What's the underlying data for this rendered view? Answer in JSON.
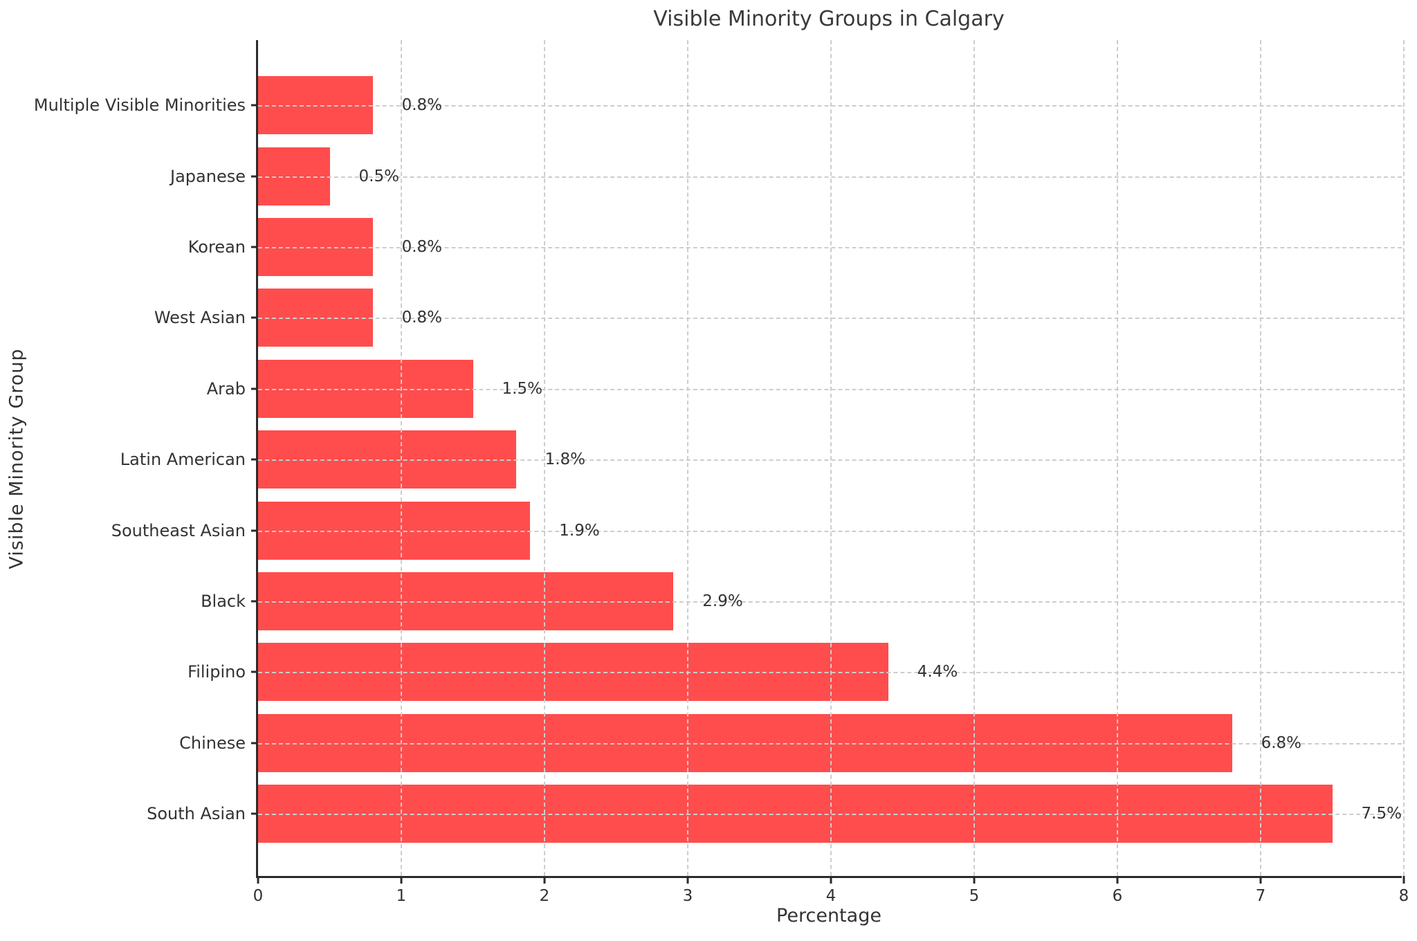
{
  "title": "Visible Minority Groups in Calgary",
  "axes": {
    "xlabel": "Percentage",
    "ylabel": "Visible Minority Group"
  },
  "chart_data": {
    "type": "bar",
    "orientation": "horizontal",
    "title": "Visible Minority Groups in Calgary",
    "xlabel": "Percentage",
    "ylabel": "Visible Minority Group",
    "categories": [
      "Multiple Visible Minorities",
      "Japanese",
      "Korean",
      "West Asian",
      "Arab",
      "Latin American",
      "Southeast Asian",
      "Black",
      "Filipino",
      "Chinese",
      "South Asian"
    ],
    "values": [
      0.8,
      0.5,
      0.8,
      0.8,
      1.5,
      1.8,
      1.9,
      2.9,
      4.4,
      6.8,
      7.5
    ],
    "value_labels": [
      "0.8%",
      "0.5%",
      "0.8%",
      "0.8%",
      "1.5%",
      "1.8%",
      "1.9%",
      "2.9%",
      "4.4%",
      "6.8%",
      "7.5%"
    ],
    "category_order_note": "listed top to bottom as rendered",
    "xlim": [
      0,
      8
    ],
    "x_ticks": [
      "0",
      "1",
      "2",
      "3",
      "4",
      "5",
      "6",
      "7",
      "8"
    ],
    "grid": "dashed light-gray gridlines on both axes, drawn above bars",
    "legend": "none",
    "bar_color": "#FF4D4D",
    "grid_color": "#cdcdcd",
    "spine_color": "#2b2b2b",
    "text_color": "#333333"
  }
}
